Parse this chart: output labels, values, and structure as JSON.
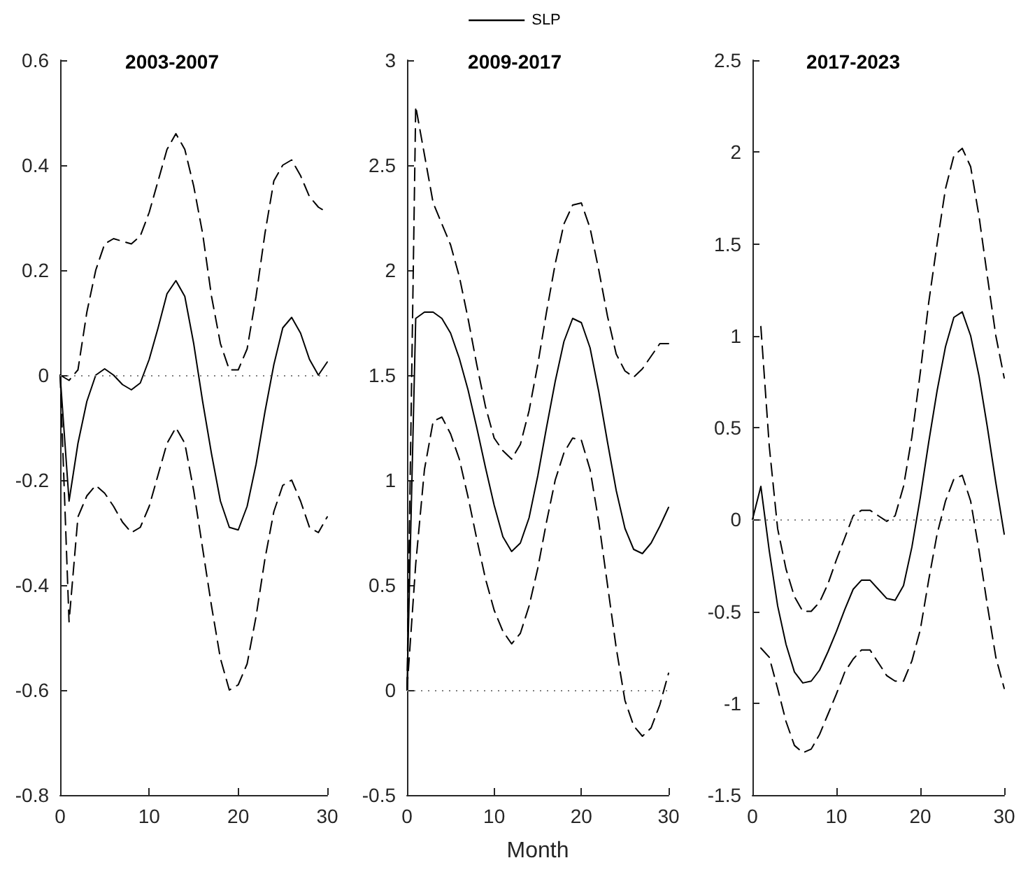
{
  "chart_data": [
    {
      "type": "line",
      "title": "2003-2007",
      "x": [
        0,
        1,
        2,
        3,
        4,
        5,
        6,
        7,
        8,
        9,
        10,
        11,
        12,
        13,
        14,
        15,
        16,
        17,
        18,
        19,
        20,
        21,
        22,
        23,
        24,
        25,
        26,
        27,
        28,
        29,
        30
      ],
      "xlim": [
        0,
        30
      ],
      "xticks": [
        0,
        10,
        20,
        30
      ],
      "ylim": [
        -0.8,
        0.6
      ],
      "yticks": [
        -0.8,
        -0.6,
        -0.4,
        -0.2,
        0,
        0.2,
        0.4,
        0.6
      ],
      "grid": false,
      "marker": "none",
      "line_style": "solid",
      "series": [
        {
          "color": "#000000",
          "values": [
            0,
            -0.24,
            -0.13,
            -0.05,
            0,
            0.012,
            0,
            -0.018,
            -0.028,
            -0.015,
            0.03,
            0.09,
            0.155,
            0.18,
            0.15,
            0.06,
            -0.05,
            -0.15,
            -0.24,
            -0.29,
            -0.295,
            -0.25,
            -0.17,
            -0.07,
            0.02,
            0.09,
            0.11,
            0.08,
            0.03,
            0,
            0.025
          ]
        },
        {
          "color": "#000000",
          "line_style": "dashed",
          "values": [
            0,
            -0.01,
            0.01,
            0.12,
            0.2,
            0.25,
            0.26,
            0.255,
            0.25,
            0.265,
            0.31,
            0.37,
            0.43,
            0.46,
            0.43,
            0.36,
            0.27,
            0.15,
            0.06,
            0.01,
            0.01,
            0.05,
            0.15,
            0.27,
            0.37,
            0.4,
            0.41,
            0.38,
            0.34,
            0.32,
            0.31
          ]
        },
        {
          "color": "#000000",
          "line_style": "dashed",
          "values": [
            0,
            -0.47,
            -0.27,
            -0.23,
            -0.21,
            -0.225,
            -0.25,
            -0.28,
            -0.3,
            -0.29,
            -0.25,
            -0.19,
            -0.13,
            -0.1,
            -0.13,
            -0.22,
            -0.33,
            -0.44,
            -0.54,
            -0.6,
            -0.59,
            -0.55,
            -0.46,
            -0.35,
            -0.26,
            -0.21,
            -0.2,
            -0.24,
            -0.29,
            -0.3,
            -0.27
          ]
        }
      ],
      "ref_lines": [
        {
          "axis": "y",
          "value": 0,
          "color": "#808080",
          "line_style": "dotted"
        }
      ]
    },
    {
      "type": "line",
      "title": "2009-2017",
      "xlabel": "Month",
      "legend": "top",
      "x": [
        0,
        1,
        2,
        3,
        4,
        5,
        6,
        7,
        8,
        9,
        10,
        11,
        12,
        13,
        14,
        15,
        16,
        17,
        18,
        19,
        20,
        21,
        22,
        23,
        24,
        25,
        26,
        27,
        28,
        29,
        30
      ],
      "xlim": [
        0,
        30
      ],
      "xticks": [
        0,
        10,
        20,
        30
      ],
      "ylim": [
        -0.5,
        3
      ],
      "yticks": [
        -0.5,
        0,
        0.5,
        1,
        1.5,
        2,
        2.5,
        3
      ],
      "grid": false,
      "marker": "none",
      "line_style": "solid",
      "series": [
        {
          "name": "SLP",
          "color": "#000000",
          "values": [
            0,
            1.77,
            1.8,
            1.8,
            1.77,
            1.7,
            1.58,
            1.43,
            1.25,
            1.06,
            0.88,
            0.73,
            0.66,
            0.7,
            0.82,
            1.02,
            1.25,
            1.47,
            1.66,
            1.77,
            1.75,
            1.63,
            1.42,
            1.18,
            0.95,
            0.77,
            0.67,
            0.65,
            0.7,
            0.78,
            0.87
          ]
        },
        {
          "color": "#000000",
          "line_style": "dashed",
          "values": [
            0,
            2.78,
            2.55,
            2.32,
            2.22,
            2.12,
            1.97,
            1.77,
            1.55,
            1.35,
            1.2,
            1.14,
            1.1,
            1.17,
            1.33,
            1.55,
            1.8,
            2.03,
            2.22,
            2.31,
            2.32,
            2.2,
            2,
            1.78,
            1.6,
            1.52,
            1.49,
            1.53,
            1.59,
            1.65,
            1.65
          ]
        },
        {
          "color": "#000000",
          "line_style": "dashed",
          "values": [
            0,
            0.6,
            1.05,
            1.28,
            1.3,
            1.22,
            1.1,
            0.92,
            0.72,
            0.53,
            0.38,
            0.28,
            0.22,
            0.27,
            0.4,
            0.58,
            0.8,
            1,
            1.13,
            1.2,
            1.19,
            1.05,
            0.8,
            0.5,
            0.2,
            -0.05,
            -0.17,
            -0.22,
            -0.18,
            -0.07,
            0.08
          ]
        }
      ],
      "ref_lines": [
        {
          "axis": "y",
          "value": 0,
          "color": "#808080",
          "line_style": "dotted"
        }
      ]
    },
    {
      "type": "line",
      "title": "2017-2023",
      "x": [
        0,
        1,
        2,
        3,
        4,
        5,
        6,
        7,
        8,
        9,
        10,
        11,
        12,
        13,
        14,
        15,
        16,
        17,
        18,
        19,
        20,
        21,
        22,
        23,
        24,
        25,
        26,
        27,
        28,
        29,
        30
      ],
      "xlim": [
        0,
        30
      ],
      "xticks": [
        0,
        10,
        20,
        30
      ],
      "ylim": [
        -1.5,
        2.5
      ],
      "yticks": [
        -1.5,
        -1,
        -0.5,
        0,
        0.5,
        1,
        1.5,
        2,
        2.5
      ],
      "grid": false,
      "marker": "none",
      "line_style": "solid",
      "series": [
        {
          "color": "#000000",
          "values": [
            0,
            0.18,
            -0.17,
            -0.47,
            -0.68,
            -0.83,
            -0.89,
            -0.88,
            -0.82,
            -0.72,
            -0.61,
            -0.49,
            -0.38,
            -0.33,
            -0.33,
            -0.38,
            -0.43,
            -0.44,
            -0.36,
            -0.15,
            0.12,
            0.42,
            0.7,
            0.94,
            1.1,
            1.13,
            1,
            0.78,
            0.5,
            0.2,
            -0.08
          ]
        },
        {
          "color": "#000000",
          "line_style": "dashed",
          "values": [
            null,
            1.05,
            0.4,
            -0.05,
            -0.27,
            -0.42,
            -0.5,
            -0.5,
            -0.45,
            -0.35,
            -0.22,
            -0.1,
            0.02,
            0.05,
            0.05,
            0.02,
            -0.01,
            0.02,
            0.18,
            0.45,
            0.8,
            1.18,
            1.5,
            1.8,
            1.98,
            2.02,
            1.92,
            1.65,
            1.32,
            1,
            0.77
          ]
        },
        {
          "color": "#000000",
          "line_style": "dashed",
          "values": [
            null,
            -0.7,
            -0.75,
            -0.92,
            -1.1,
            -1.23,
            -1.27,
            -1.25,
            -1.17,
            -1.06,
            -0.95,
            -0.83,
            -0.76,
            -0.71,
            -0.71,
            -0.78,
            -0.85,
            -0.88,
            -0.88,
            -0.77,
            -0.6,
            -0.33,
            -0.08,
            0.1,
            0.22,
            0.24,
            0.1,
            -0.17,
            -0.47,
            -0.75,
            -0.92
          ]
        }
      ],
      "ref_lines": [
        {
          "axis": "y",
          "value": 0,
          "color": "#808080",
          "line_style": "dotted"
        }
      ]
    }
  ]
}
